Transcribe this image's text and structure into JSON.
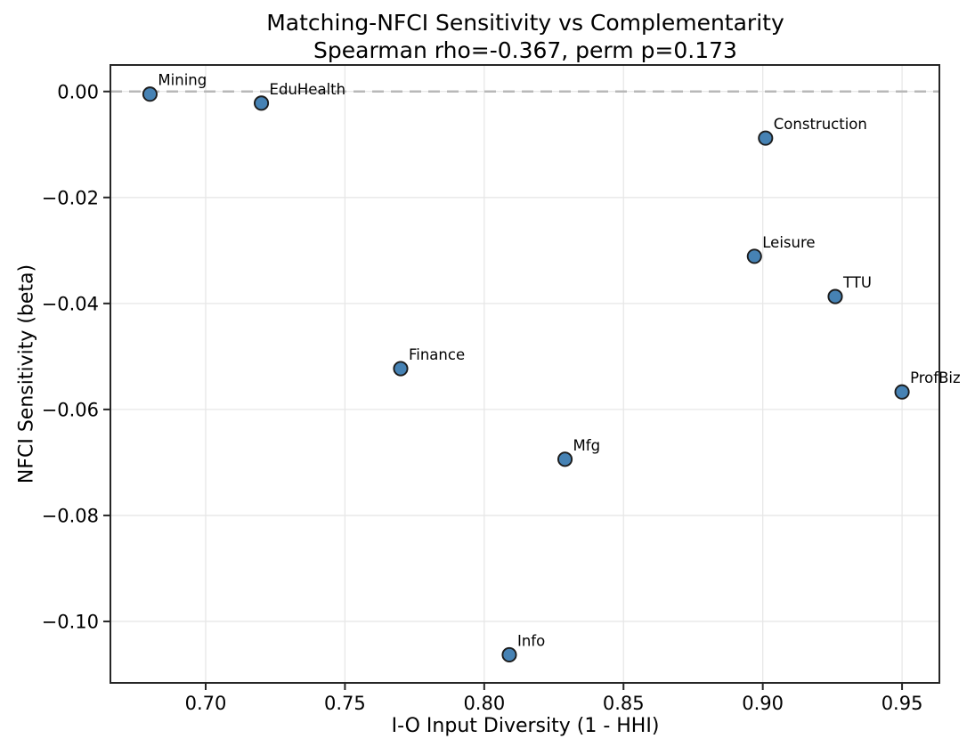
{
  "chart_data": {
    "type": "scatter",
    "title": "Matching-NFCI Sensitivity vs Complementarity",
    "subtitle": "Spearman rho=-0.367, perm p=0.173",
    "xlabel": "I-O Input Diversity (1 - HHI)",
    "ylabel": "NFCI Sensitivity (beta)",
    "xlim": [
      0.6658,
      0.9634
    ],
    "ylim": [
      -0.1116,
      0.005
    ],
    "xticks": {
      "values": [
        0.7,
        0.75,
        0.8,
        0.85,
        0.9,
        0.95
      ],
      "labels": [
        "0.70",
        "0.75",
        "0.80",
        "0.85",
        "0.90",
        "0.95"
      ]
    },
    "yticks": {
      "values": [
        0.0,
        -0.02,
        -0.04,
        -0.06,
        -0.08,
        -0.1
      ],
      "labels": [
        "0.00",
        "−0.02",
        "−0.04",
        "−0.06",
        "−0.08",
        "−0.10"
      ]
    },
    "grid": true,
    "legend": "none",
    "zero_line": {
      "y": 0.0,
      "style": "dashed",
      "color": "#b8b8b8"
    },
    "marker": {
      "fill": "#4682B4",
      "edge": "#1c1c1c"
    },
    "points": [
      {
        "label": "Mining",
        "x": 0.68,
        "y": -0.0005
      },
      {
        "label": "EduHealth",
        "x": 0.72,
        "y": -0.0022
      },
      {
        "label": "Construction",
        "x": 0.901,
        "y": -0.0088
      },
      {
        "label": "Leisure",
        "x": 0.897,
        "y": -0.0311
      },
      {
        "label": "TTU",
        "x": 0.926,
        "y": -0.0387
      },
      {
        "label": "Finance",
        "x": 0.77,
        "y": -0.0523
      },
      {
        "label": "ProfBiz",
        "x": 0.95,
        "y": -0.0567
      },
      {
        "label": "Mfg",
        "x": 0.829,
        "y": -0.0694
      },
      {
        "label": "Info",
        "x": 0.809,
        "y": -0.1063
      }
    ]
  }
}
